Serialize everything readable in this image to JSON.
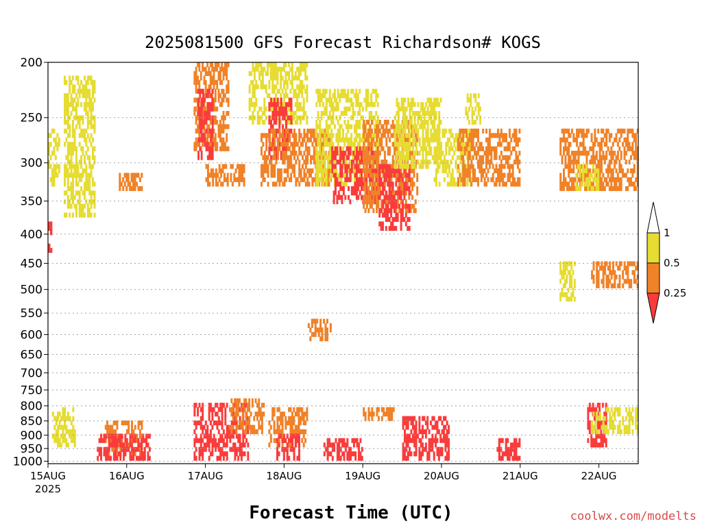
{
  "chart_data": {
    "type": "heatmap",
    "title": "2025081500 GFS Forecast Richardson# KOGS",
    "xlabel": "Forecast Time (UTC)",
    "ylabel": "",
    "x_ticks": [
      "15AUG",
      "16AUG",
      "17AUG",
      "18AUG",
      "19AUG",
      "20AUG",
      "21AUG",
      "22AUG"
    ],
    "x_year": "2025",
    "xlim_days": [
      0,
      7.5
    ],
    "y_ticks": [
      200,
      250,
      300,
      350,
      400,
      450,
      500,
      550,
      600,
      650,
      700,
      750,
      800,
      850,
      900,
      950,
      1000
    ],
    "ylim_hpa": [
      200,
      1010
    ],
    "y_scale": "log",
    "grid": true,
    "legend": {
      "position": "right",
      "levels": [
        {
          "label": "1",
          "color": "#ffffff"
        },
        {
          "label": "0.5",
          "color": "#e6dc32"
        },
        {
          "label": "0.25",
          "color": "#f08228"
        },
        {
          "label": "",
          "color": "#fa3c3c"
        }
      ],
      "boundary_labels": [
        "1",
        "0.5",
        "0.25"
      ]
    },
    "colors": {
      "lt_025": "#fa3c3c",
      "025_05": "#f08228",
      "05_1": "#e6dc32",
      "ground": "#a05028"
    },
    "regions": [
      {
        "cls": 2,
        "t": [
          0.05,
          0.35
        ],
        "p": [
          800,
          950
        ]
      },
      {
        "cls": 1,
        "t": [
          0.7,
          1.2
        ],
        "p": [
          840,
          980
        ]
      },
      {
        "cls": 0,
        "t": [
          0.6,
          1.3
        ],
        "p": [
          880,
          1000
        ]
      },
      {
        "cls": 2,
        "t": [
          0.0,
          0.15
        ],
        "p": [
          260,
          330
        ]
      },
      {
        "cls": 0,
        "t": [
          0.0,
          0.05
        ],
        "p": [
          380,
          450
        ]
      },
      {
        "cls": 2,
        "t": [
          0.2,
          0.6
        ],
        "p": [
          210,
          380
        ]
      },
      {
        "cls": 1,
        "t": [
          0.9,
          1.2
        ],
        "p": [
          310,
          340
        ]
      },
      {
        "cls": 1,
        "t": [
          1.85,
          2.3
        ],
        "p": [
          200,
          290
        ]
      },
      {
        "cls": 0,
        "t": [
          1.9,
          2.1
        ],
        "p": [
          220,
          300
        ]
      },
      {
        "cls": 1,
        "t": [
          2.0,
          2.5
        ],
        "p": [
          300,
          330
        ]
      },
      {
        "cls": 0,
        "t": [
          1.85,
          2.55
        ],
        "p": [
          780,
          1000
        ]
      },
      {
        "cls": 1,
        "t": [
          2.3,
          2.75
        ],
        "p": [
          770,
          900
        ]
      },
      {
        "cls": 2,
        "t": [
          2.55,
          3.3
        ],
        "p": [
          200,
          260
        ]
      },
      {
        "cls": 0,
        "t": [
          2.8,
          3.1
        ],
        "p": [
          230,
          300
        ]
      },
      {
        "cls": 1,
        "t": [
          2.7,
          3.6
        ],
        "p": [
          260,
          330
        ]
      },
      {
        "cls": 1,
        "t": [
          3.3,
          3.6
        ],
        "p": [
          560,
          620
        ]
      },
      {
        "cls": 1,
        "t": [
          2.8,
          3.3
        ],
        "p": [
          800,
          950
        ]
      },
      {
        "cls": 0,
        "t": [
          2.9,
          3.2
        ],
        "p": [
          880,
          1000
        ]
      },
      {
        "cls": 2,
        "t": [
          3.4,
          4.2
        ],
        "p": [
          220,
          330
        ]
      },
      {
        "cls": 0,
        "t": [
          3.6,
          4.2
        ],
        "p": [
          280,
          360
        ]
      },
      {
        "cls": 1,
        "t": [
          4.0,
          4.7
        ],
        "p": [
          250,
          370
        ]
      },
      {
        "cls": 0,
        "t": [
          4.2,
          4.6
        ],
        "p": [
          300,
          400
        ]
      },
      {
        "cls": 2,
        "t": [
          4.4,
          5.0
        ],
        "p": [
          230,
          310
        ]
      },
      {
        "cls": 0,
        "t": [
          3.5,
          4.0
        ],
        "p": [
          900,
          1000
        ]
      },
      {
        "cls": 1,
        "t": [
          4.0,
          4.4
        ],
        "p": [
          790,
          860
        ]
      },
      {
        "cls": 0,
        "t": [
          4.5,
          5.1
        ],
        "p": [
          820,
          1000
        ]
      },
      {
        "cls": 2,
        "t": [
          4.9,
          5.4
        ],
        "p": [
          260,
          330
        ]
      },
      {
        "cls": 1,
        "t": [
          5.2,
          6.0
        ],
        "p": [
          260,
          330
        ]
      },
      {
        "cls": 2,
        "t": [
          5.3,
          5.5
        ],
        "p": [
          225,
          260
        ]
      },
      {
        "cls": 0,
        "t": [
          5.7,
          6.0
        ],
        "p": [
          900,
          1000
        ]
      },
      {
        "cls": 1,
        "t": [
          6.5,
          7.5
        ],
        "p": [
          260,
          340
        ]
      },
      {
        "cls": 2,
        "t": [
          6.7,
          7.0
        ],
        "p": [
          300,
          340
        ]
      },
      {
        "cls": 0,
        "t": [
          6.85,
          7.1
        ],
        "p": [
          780,
          960
        ]
      },
      {
        "cls": 2,
        "t": [
          6.9,
          7.5
        ],
        "p": [
          800,
          900
        ]
      },
      {
        "cls": 1,
        "t": [
          6.9,
          7.5
        ],
        "p": [
          440,
          500
        ]
      },
      {
        "cls": 2,
        "t": [
          6.5,
          6.7
        ],
        "p": [
          440,
          530
        ]
      }
    ]
  },
  "watermark": "coolwx.com/modelts"
}
